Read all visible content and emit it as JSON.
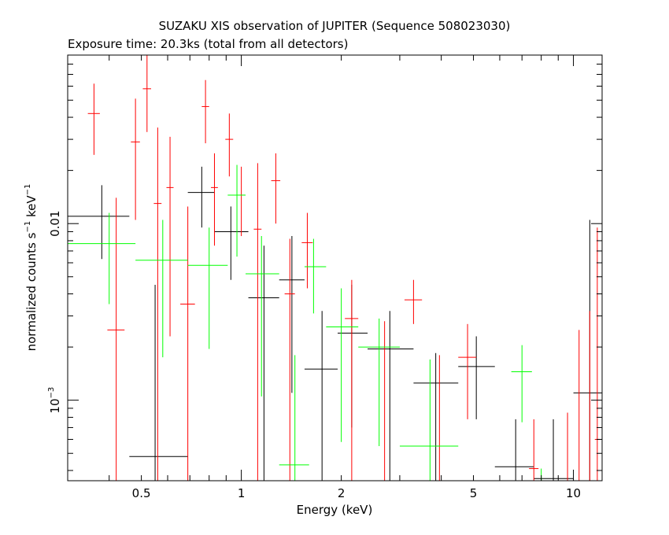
{
  "chart_data": {
    "type": "scatter",
    "title": "SUZAKU XIS observation of JUPITER (Sequence 508023030)",
    "subtitle": "Exposure time: 20.3ks (total from all detectors)",
    "xlabel": "Energy (keV)",
    "ylabel_main": "normalized counts s",
    "ylabel_sup1": "−1",
    "ylabel_mid": " keV",
    "ylabel_sup2": "−1",
    "xscale": "log",
    "yscale": "log",
    "xlim": [
      0.3,
      12.2
    ],
    "ylim": [
      0.00035,
      0.09
    ],
    "xticks": [
      {
        "v": 0.5,
        "label": "0.5"
      },
      {
        "v": 1,
        "label": "1"
      },
      {
        "v": 2,
        "label": "2"
      },
      {
        "v": 5,
        "label": "5"
      },
      {
        "v": 10,
        "label": "10"
      }
    ],
    "yticks": [
      {
        "v": 0.01,
        "label": "0.01"
      },
      {
        "v": 0.001,
        "label": "10",
        "sup": "−3"
      }
    ],
    "grid": false,
    "series": [
      {
        "color": "#000000",
        "points": [
          {
            "x": 0.38,
            "xlo": 0.3,
            "xhi": 0.46,
            "y": 0.011,
            "ylo": 0.0063,
            "yhi": 0.0165
          },
          {
            "x": 0.55,
            "xlo": 0.46,
            "xhi": 0.69,
            "y": 0.00048,
            "ylo": 0.00035,
            "yhi": 0.0045
          },
          {
            "x": 0.76,
            "xlo": 0.69,
            "xhi": 0.83,
            "y": 0.015,
            "ylo": 0.0095,
            "yhi": 0.021
          },
          {
            "x": 0.93,
            "xlo": 0.83,
            "xhi": 1.05,
            "y": 0.009,
            "ylo": 0.0048,
            "yhi": 0.0125
          },
          {
            "x": 1.17,
            "xlo": 1.05,
            "xhi": 1.3,
            "y": 0.0038,
            "ylo": 0.00035,
            "yhi": 0.0075
          },
          {
            "x": 1.42,
            "xlo": 1.3,
            "xhi": 1.55,
            "y": 0.0048,
            "ylo": 0.0011,
            "yhi": 0.0085
          },
          {
            "x": 1.75,
            "xlo": 1.55,
            "xhi": 1.95,
            "y": 0.0015,
            "ylo": 0.00035,
            "yhi": 0.0032
          },
          {
            "x": 2.15,
            "xlo": 1.95,
            "xhi": 2.4,
            "y": 0.0024,
            "ylo": 0.0007,
            "yhi": 0.0045
          },
          {
            "x": 2.8,
            "xlo": 2.4,
            "xhi": 3.3,
            "y": 0.00195,
            "ylo": 0.00035,
            "yhi": 0.0032
          },
          {
            "x": 3.85,
            "xlo": 3.3,
            "xhi": 4.5,
            "y": 0.00125,
            "ylo": 0.00035,
            "yhi": 0.00185
          },
          {
            "x": 5.1,
            "xlo": 4.5,
            "xhi": 5.8,
            "y": 0.00155,
            "ylo": 0.00078,
            "yhi": 0.0023
          },
          {
            "x": 6.7,
            "xlo": 5.8,
            "xhi": 7.6,
            "y": 0.00042,
            "ylo": 0.00035,
            "yhi": 0.00078
          },
          {
            "x": 8.7,
            "xlo": 7.6,
            "xhi": 10.0,
            "y": 0.00036,
            "ylo": 0.00035,
            "yhi": 0.00078
          },
          {
            "x": 11.2,
            "xlo": 10.0,
            "xhi": 12.2,
            "y": 0.0011,
            "ylo": 0.00035,
            "yhi": 0.0105
          }
        ]
      },
      {
        "color": "#ff0000",
        "points": [
          {
            "x": 0.36,
            "xlo": 0.345,
            "xhi": 0.375,
            "y": 0.042,
            "ylo": 0.0245,
            "yhi": 0.062
          },
          {
            "x": 0.42,
            "xlo": 0.395,
            "xhi": 0.445,
            "y": 0.0025,
            "ylo": 0.00035,
            "yhi": 0.014
          },
          {
            "x": 0.48,
            "xlo": 0.465,
            "xhi": 0.495,
            "y": 0.029,
            "ylo": 0.0105,
            "yhi": 0.051
          },
          {
            "x": 0.52,
            "xlo": 0.505,
            "xhi": 0.535,
            "y": 0.058,
            "ylo": 0.033,
            "yhi": 0.09
          },
          {
            "x": 0.56,
            "xlo": 0.545,
            "xhi": 0.575,
            "y": 0.013,
            "ylo": 0.00035,
            "yhi": 0.035
          },
          {
            "x": 0.61,
            "xlo": 0.595,
            "xhi": 0.625,
            "y": 0.016,
            "ylo": 0.0023,
            "yhi": 0.031
          },
          {
            "x": 0.69,
            "xlo": 0.655,
            "xhi": 0.725,
            "y": 0.0035,
            "ylo": 0.00035,
            "yhi": 0.0125
          },
          {
            "x": 0.78,
            "xlo": 0.76,
            "xhi": 0.8,
            "y": 0.046,
            "ylo": 0.0285,
            "yhi": 0.065
          },
          {
            "x": 0.83,
            "xlo": 0.81,
            "xhi": 0.85,
            "y": 0.016,
            "ylo": 0.0075,
            "yhi": 0.025
          },
          {
            "x": 0.92,
            "xlo": 0.895,
            "xhi": 0.945,
            "y": 0.03,
            "ylo": 0.0185,
            "yhi": 0.042
          },
          {
            "x": 1.0,
            "xlo": 0.975,
            "xhi": 1.025,
            "y": 0.0145,
            "ylo": 0.0085,
            "yhi": 0.021
          },
          {
            "x": 1.12,
            "xlo": 1.09,
            "xhi": 1.15,
            "y": 0.0093,
            "ylo": 0.00035,
            "yhi": 0.022
          },
          {
            "x": 1.27,
            "xlo": 1.23,
            "xhi": 1.31,
            "y": 0.0175,
            "ylo": 0.01,
            "yhi": 0.025
          },
          {
            "x": 1.4,
            "xlo": 1.35,
            "xhi": 1.45,
            "y": 0.004,
            "ylo": 0.00035,
            "yhi": 0.0082
          },
          {
            "x": 1.58,
            "xlo": 1.52,
            "xhi": 1.64,
            "y": 0.0078,
            "ylo": 0.0043,
            "yhi": 0.0115
          },
          {
            "x": 2.15,
            "xlo": 2.05,
            "xhi": 2.25,
            "y": 0.0029,
            "ylo": 0.00035,
            "yhi": 0.0048
          },
          {
            "x": 2.7,
            "xlo": 2.6,
            "xhi": 2.8,
            "y": 0.00035,
            "ylo": 0.00035,
            "yhi": 0.0028
          },
          {
            "x": 3.3,
            "xlo": 3.1,
            "xhi": 3.5,
            "y": 0.0037,
            "ylo": 0.0027,
            "yhi": 0.0048
          },
          {
            "x": 3.95,
            "xlo": 3.75,
            "xhi": 4.15,
            "y": 0.00055,
            "ylo": 0.00035,
            "yhi": 0.0018
          },
          {
            "x": 4.8,
            "xlo": 4.5,
            "xhi": 5.1,
            "y": 0.00175,
            "ylo": 0.00078,
            "yhi": 0.0027
          },
          {
            "x": 5.7,
            "xlo": 5.5,
            "xhi": 5.9,
            "y": 0.00035,
            "ylo": 0.00035,
            "yhi": 0.00035
          },
          {
            "x": 7.6,
            "xlo": 7.35,
            "xhi": 7.85,
            "y": 0.00041,
            "ylo": 0.00035,
            "yhi": 0.00078
          },
          {
            "x": 9.6,
            "xlo": 9.5,
            "xhi": 9.7,
            "y": 0.00035,
            "ylo": 0.00035,
            "yhi": 0.00085
          },
          {
            "x": 10.4,
            "xlo": 10.3,
            "xhi": 10.5,
            "y": 0.00035,
            "ylo": 0.00035,
            "yhi": 0.0025
          },
          {
            "x": 11.2,
            "xlo": 11.0,
            "xhi": 11.4,
            "y": 0.00035,
            "ylo": 0.00035,
            "yhi": 0.0032
          },
          {
            "x": 11.8,
            "xlo": 11.6,
            "xhi": 12.0,
            "y": 0.0006,
            "ylo": 0.00035,
            "yhi": 0.0095
          }
        ]
      },
      {
        "color": "#00ff00",
        "points": [
          {
            "x": 0.4,
            "xlo": 0.3,
            "xhi": 0.48,
            "y": 0.0077,
            "ylo": 0.0035,
            "yhi": 0.0115
          },
          {
            "x": 0.58,
            "xlo": 0.48,
            "xhi": 0.69,
            "y": 0.0062,
            "ylo": 0.00175,
            "yhi": 0.0105
          },
          {
            "x": 0.8,
            "xlo": 0.69,
            "xhi": 0.91,
            "y": 0.0058,
            "ylo": 0.00195,
            "yhi": 0.0095
          },
          {
            "x": 0.97,
            "xlo": 0.91,
            "xhi": 1.03,
            "y": 0.0145,
            "ylo": 0.0065,
            "yhi": 0.0215
          },
          {
            "x": 1.15,
            "xlo": 1.03,
            "xhi": 1.3,
            "y": 0.0052,
            "ylo": 0.00105,
            "yhi": 0.0085
          },
          {
            "x": 1.45,
            "xlo": 1.3,
            "xhi": 1.6,
            "y": 0.00043,
            "ylo": 0.00035,
            "yhi": 0.0018
          },
          {
            "x": 1.65,
            "xlo": 1.55,
            "xhi": 1.8,
            "y": 0.0057,
            "ylo": 0.0031,
            "yhi": 0.0082
          },
          {
            "x": 2.0,
            "xlo": 1.8,
            "xhi": 2.25,
            "y": 0.0026,
            "ylo": 0.00058,
            "yhi": 0.0043
          },
          {
            "x": 2.6,
            "xlo": 2.25,
            "xhi": 3.0,
            "y": 0.002,
            "ylo": 0.00055,
            "yhi": 0.0029
          },
          {
            "x": 3.7,
            "xlo": 3.0,
            "xhi": 4.5,
            "y": 0.00055,
            "ylo": 0.00035,
            "yhi": 0.0017
          },
          {
            "x": 7.0,
            "xlo": 6.5,
            "xhi": 7.5,
            "y": 0.00145,
            "ylo": 0.00075,
            "yhi": 0.00205
          },
          {
            "x": 8.0,
            "xlo": 7.9,
            "xhi": 8.1,
            "y": 0.00035,
            "ylo": 0.00035,
            "yhi": 0.00041
          }
        ]
      }
    ]
  }
}
